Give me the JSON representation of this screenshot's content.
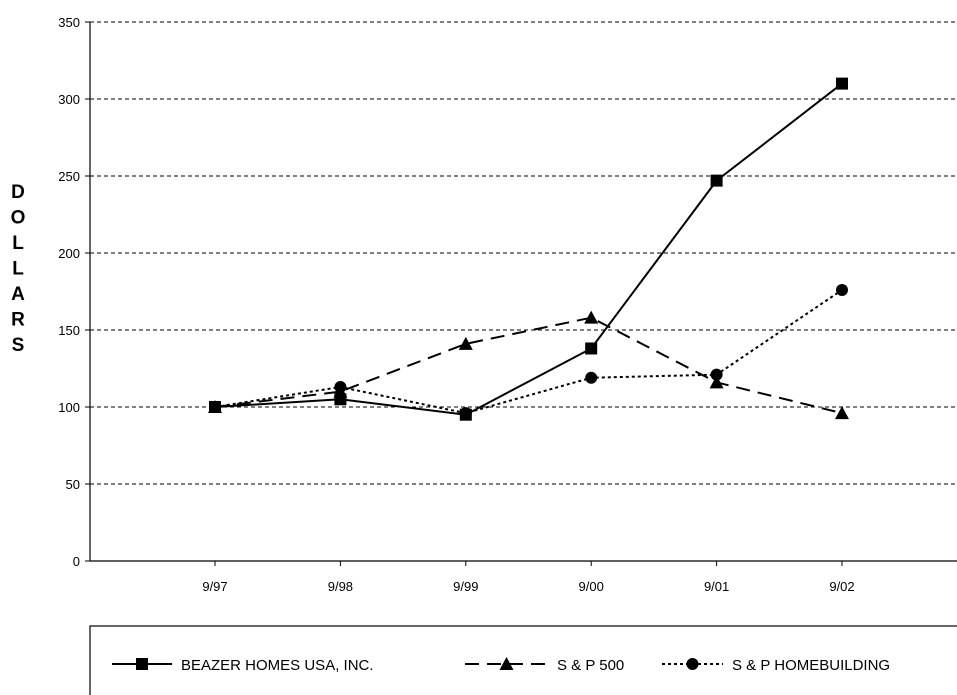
{
  "chart_data": {
    "type": "line",
    "title": "",
    "xlabel": "",
    "ylabel": "DOLLARS",
    "categories": [
      "9/97",
      "9/98",
      "9/99",
      "9/00",
      "9/01",
      "9/02"
    ],
    "ylim": [
      0,
      350
    ],
    "yticks": [
      0,
      50,
      100,
      150,
      200,
      250,
      300,
      350
    ],
    "grid": "horizontal-dashed",
    "legend_position": "bottom",
    "series": [
      {
        "name": "BEAZER HOMES USA, INC.",
        "marker": "square",
        "line_style": "solid",
        "values": [
          100,
          105,
          95,
          138,
          247,
          310
        ]
      },
      {
        "name": "S & P 500",
        "marker": "triangle",
        "line_style": "dashed",
        "values": [
          100,
          110,
          141,
          158,
          116,
          96
        ]
      },
      {
        "name": "S & P HOMEBUILDING",
        "marker": "circle",
        "line_style": "dotted",
        "values": [
          100,
          113,
          96,
          119,
          121,
          176
        ]
      }
    ]
  }
}
